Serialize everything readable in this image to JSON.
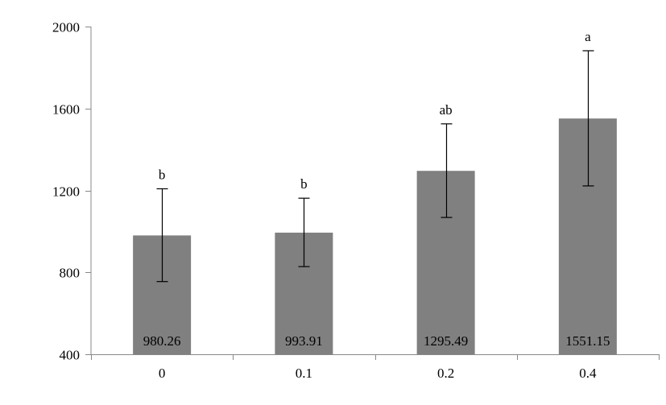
{
  "chart_data": {
    "type": "bar",
    "categories": [
      "0",
      "0.1",
      "0.2",
      "0.4"
    ],
    "values": [
      980.26,
      993.91,
      1295.49,
      1551.15
    ],
    "data_labels": [
      "980.26",
      "993.91",
      "1295.49",
      "1551.15"
    ],
    "error_upper": [
      1208,
      1162,
      1525,
      1882
    ],
    "error_lower": [
      755,
      828,
      1068,
      1222
    ],
    "significance_letters": [
      "b",
      "b",
      "ab",
      "a"
    ],
    "ylim": [
      400,
      2000
    ],
    "y_ticks": [
      400,
      800,
      1200,
      1600,
      2000
    ],
    "y_tick_labels": [
      "400",
      "800",
      "1200",
      "1600",
      "2000"
    ],
    "grid": false,
    "legend": "none",
    "title": "",
    "xlabel": "",
    "ylabel": "",
    "bar_color": "#808080",
    "axis_color": "#888888"
  }
}
